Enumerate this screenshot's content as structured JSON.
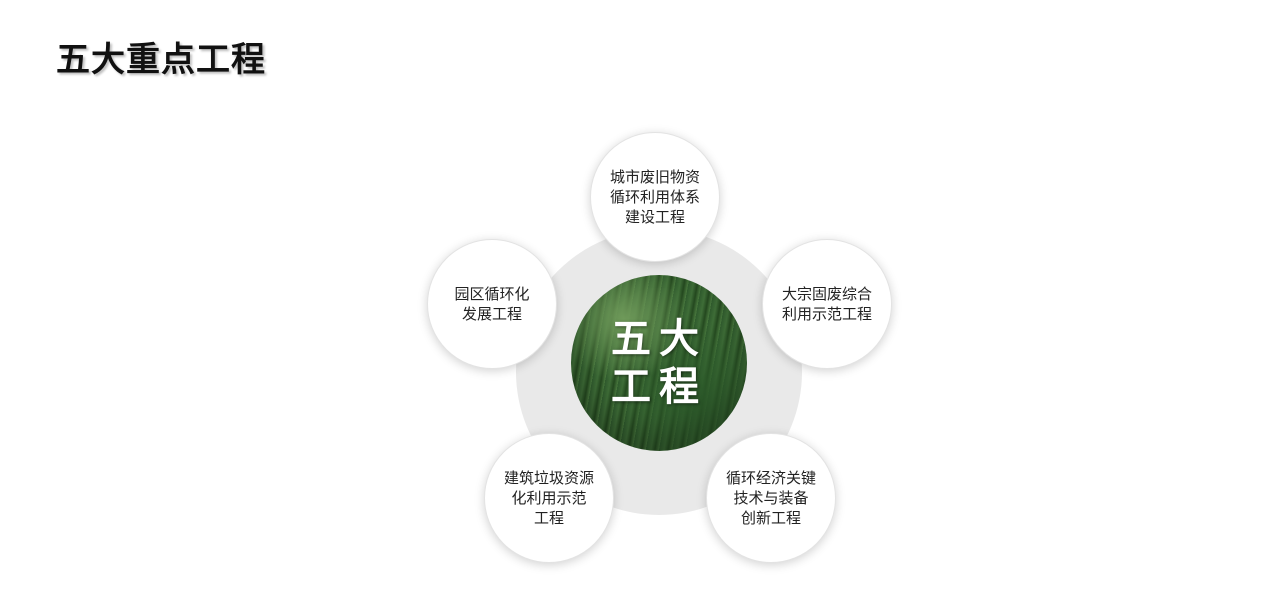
{
  "title": "五大重点工程",
  "center": {
    "line1": "五大",
    "line2": "工程"
  },
  "nodes": {
    "top": "城市废旧物资\n循环利用体系\n建设工程",
    "right": "大宗固废综合\n利用示范工程",
    "left": "园区循环化\n发展工程",
    "bottom_left": "建筑垃圾资源\n化利用示范\n工程",
    "bottom_right": "循环经济关键\n技术与装备\n创新工程"
  }
}
